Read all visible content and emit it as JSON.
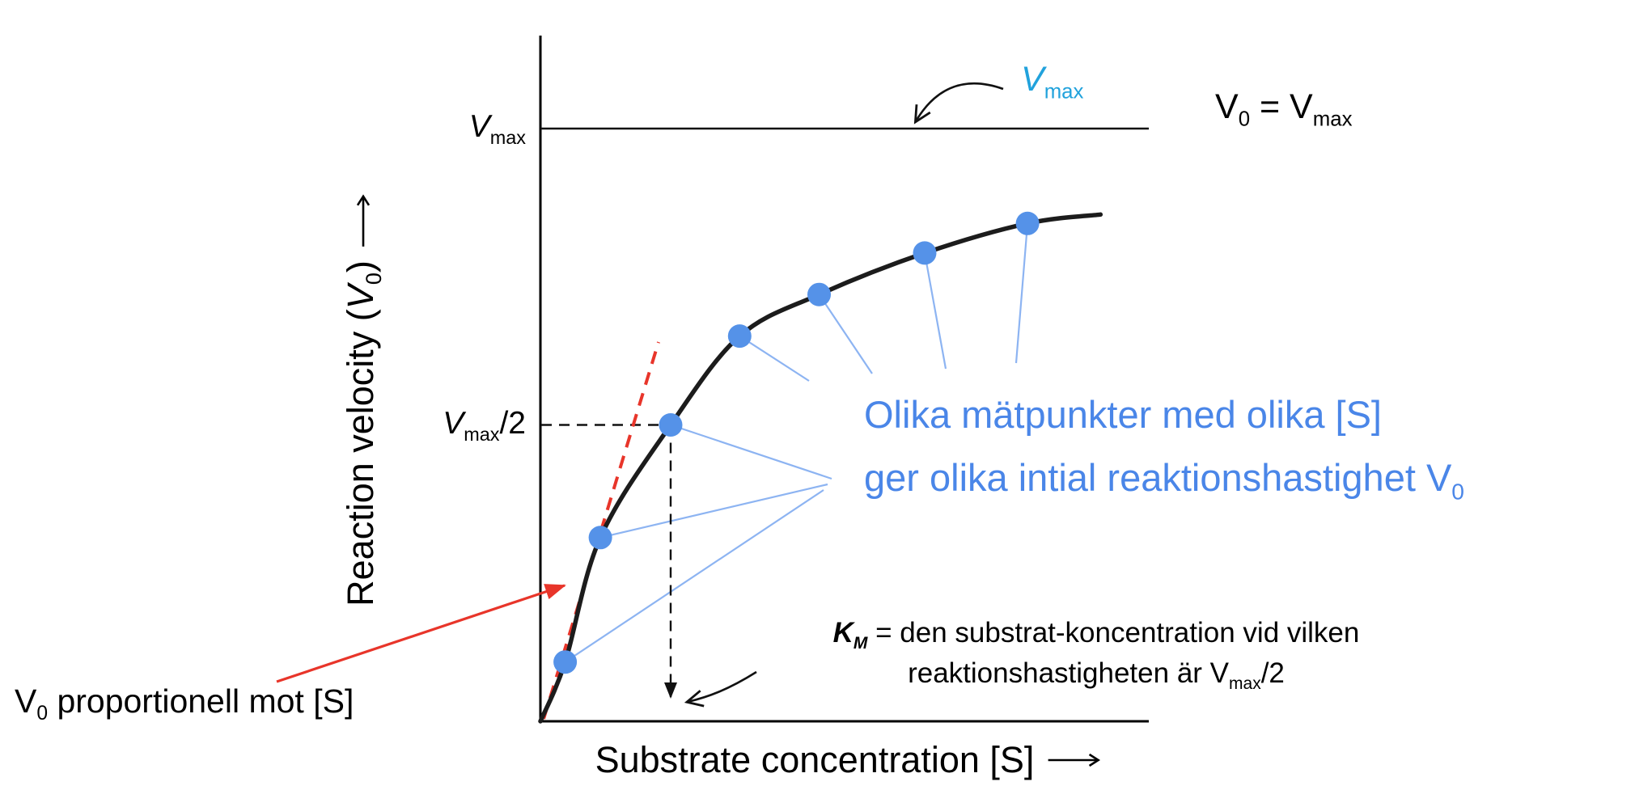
{
  "colors": {
    "curve": "#1c1c1c",
    "point_fill": "#5592e8",
    "connector": "#8db4f2",
    "blue_text": "#4a86e8",
    "cyan_label": "#21a2dc",
    "red": "#e8352a"
  },
  "axes": {
    "y_label": [
      [
        "t",
        "Reaction velocity ("
      ],
      [
        "i",
        "V"
      ],
      [
        "s",
        "0"
      ],
      [
        "t",
        ")"
      ]
    ],
    "x_label": [
      [
        "t",
        "Substrate concentration [S]"
      ]
    ],
    "y_ticks": {
      "vmax": [
        [
          "i",
          "V"
        ],
        [
          "s",
          "max"
        ]
      ],
      "vmax_half": [
        [
          "i",
          "V"
        ],
        [
          "s",
          "max"
        ],
        [
          "t",
          "/2"
        ]
      ]
    }
  },
  "annotations": {
    "vmax_line_label": [
      [
        "i",
        "V"
      ],
      [
        "s",
        "max"
      ]
    ],
    "v0_equals_vmax": [
      [
        "t",
        "V"
      ],
      [
        "s",
        "0"
      ],
      [
        "t",
        " = V"
      ],
      [
        "s",
        "max"
      ]
    ],
    "measure_points_line1": [
      [
        "t",
        "Olika mätpunkter med olika [S]"
      ]
    ],
    "measure_points_line2": [
      [
        "t",
        "ger olika intial reaktionshastighet V"
      ],
      [
        "s",
        "0"
      ]
    ],
    "km_line1": [
      [
        "bi",
        "K"
      ],
      [
        "bis",
        "M"
      ],
      [
        "t",
        " = den substrat-koncentration vid vilken"
      ]
    ],
    "km_line2": [
      [
        "t",
        "reaktionshastigheten är V"
      ],
      [
        "s",
        "max"
      ],
      [
        "t",
        "/2"
      ]
    ],
    "v0_proportional": [
      [
        "t",
        "V"
      ],
      [
        "s",
        "0"
      ],
      [
        "t",
        " proportionell mot [S]"
      ]
    ]
  },
  "chart_data": {
    "type": "scatter",
    "title": "",
    "xlabel": "Substrate concentration [S]",
    "ylabel": "Reaction velocity (V0)",
    "x_units": "[S] in multiples of KM (estimated from figure)",
    "y_units": "V0 as fraction of Vmax (estimated from figure)",
    "points_S": [
      0.19,
      0.46,
      1.0,
      1.53,
      2.14,
      2.95,
      3.74
    ],
    "points_V0": [
      0.1,
      0.31,
      0.5,
      0.65,
      0.72,
      0.79,
      0.84
    ],
    "curve": {
      "start_S": 0,
      "end_S": 4.3,
      "end_V0": 0.855
    },
    "reference_lines": {
      "vmax": 1.0,
      "vmax_half": 0.5,
      "km": 1.0
    },
    "grid": false,
    "legend": false
  }
}
